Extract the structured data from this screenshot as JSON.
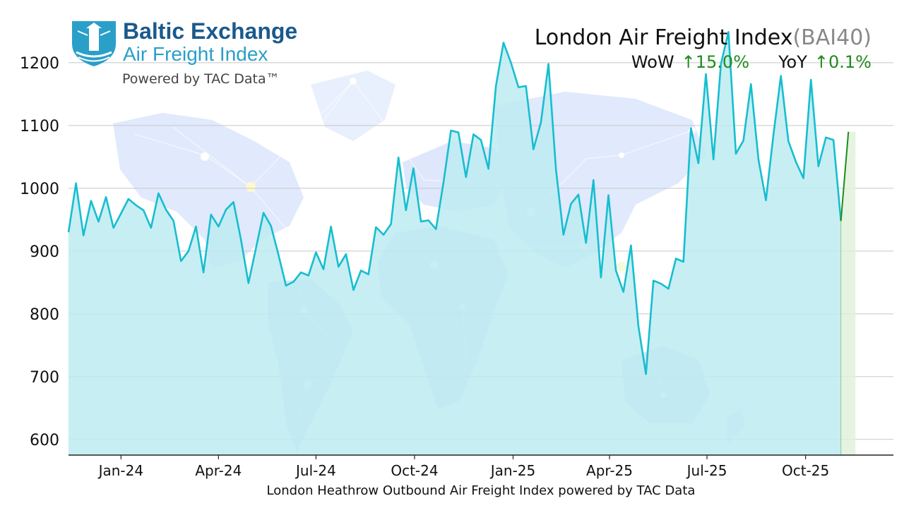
{
  "brand": {
    "line1": "Baltic Exchange",
    "line2": "Air Freight Index",
    "line3": "Powered by TAC Data™",
    "logo_icon": "lighthouse-shield-icon"
  },
  "header": {
    "title": "London Air Freight Index",
    "code": "(BAI40)",
    "wow_label": "WoW",
    "wow_value": "↑15.0%",
    "yoy_label": "YoY",
    "yoy_value": "↑0.1%"
  },
  "background": {
    "icon": "world-map-network-icon"
  },
  "colors": {
    "line": "#16becf",
    "fill": "#bdebf1",
    "latest_segment": "#1e8c1e",
    "latest_fill": "#dff0d8",
    "positive": "#1e8c1e",
    "brand": "#1a5a8c",
    "brand_accent": "#2a9fc8"
  },
  "chart_data": {
    "type": "area",
    "xlabel": "London Heathrow Outbound Air Freight Index powered by TAC Data",
    "ylabel": "",
    "ylim": [
      575,
      1255
    ],
    "xlim": [
      "2023-11-13",
      "2025-12-22"
    ],
    "yticks": [
      600,
      700,
      800,
      900,
      1000,
      1100,
      1200
    ],
    "xticks": [
      {
        "label": "Jan-24",
        "date": "2024-01-01"
      },
      {
        "label": "Apr-24",
        "date": "2024-04-01"
      },
      {
        "label": "Jul-24",
        "date": "2024-07-01"
      },
      {
        "label": "Oct-24",
        "date": "2024-10-01"
      },
      {
        "label": "Jan-25",
        "date": "2025-01-01"
      },
      {
        "label": "Apr-25",
        "date": "2025-04-01"
      },
      {
        "label": "Jul-25",
        "date": "2025-07-01"
      },
      {
        "label": "Oct-25",
        "date": "2025-10-01"
      }
    ],
    "grid": true,
    "series": [
      {
        "values": [
          [
            "2023-11-13",
            930
          ],
          [
            "2023-11-20",
            1008
          ],
          [
            "2023-11-27",
            925
          ],
          [
            "2023-12-04",
            980
          ],
          [
            "2023-12-11",
            947
          ],
          [
            "2023-12-18",
            986
          ],
          [
            "2023-12-25",
            937
          ],
          [
            "2024-01-01",
            960
          ],
          [
            "2024-01-08",
            983
          ],
          [
            "2024-01-15",
            973
          ],
          [
            "2024-01-22",
            965
          ],
          [
            "2024-01-29",
            937
          ],
          [
            "2024-02-05",
            992
          ],
          [
            "2024-02-12",
            966
          ],
          [
            "2024-02-19",
            948
          ],
          [
            "2024-02-26",
            884
          ],
          [
            "2024-03-04",
            900
          ],
          [
            "2024-03-11",
            939
          ],
          [
            "2024-03-18",
            866
          ],
          [
            "2024-03-25",
            958
          ],
          [
            "2024-04-01",
            939
          ],
          [
            "2024-04-08",
            966
          ],
          [
            "2024-04-15",
            978
          ],
          [
            "2024-04-22",
            918
          ],
          [
            "2024-04-29",
            849
          ],
          [
            "2024-05-06",
            905
          ],
          [
            "2024-05-13",
            961
          ],
          [
            "2024-05-20",
            940
          ],
          [
            "2024-05-27",
            894
          ],
          [
            "2024-06-03",
            845
          ],
          [
            "2024-06-10",
            851
          ],
          [
            "2024-06-17",
            866
          ],
          [
            "2024-06-24",
            861
          ],
          [
            "2024-07-01",
            898
          ],
          [
            "2024-07-08",
            871
          ],
          [
            "2024-07-15",
            939
          ],
          [
            "2024-07-22",
            875
          ],
          [
            "2024-07-29",
            895
          ],
          [
            "2024-08-05",
            838
          ],
          [
            "2024-08-12",
            869
          ],
          [
            "2024-08-19",
            863
          ],
          [
            "2024-08-26",
            938
          ],
          [
            "2024-09-02",
            926
          ],
          [
            "2024-09-09",
            943
          ],
          [
            "2024-09-16",
            1049
          ],
          [
            "2024-09-23",
            965
          ],
          [
            "2024-09-30",
            1032
          ],
          [
            "2024-10-07",
            947
          ],
          [
            "2024-10-14",
            949
          ],
          [
            "2024-10-21",
            935
          ],
          [
            "2024-10-28",
            1009
          ],
          [
            "2024-11-04",
            1092
          ],
          [
            "2024-11-11",
            1089
          ],
          [
            "2024-11-18",
            1018
          ],
          [
            "2024-11-25",
            1086
          ],
          [
            "2024-12-02",
            1077
          ],
          [
            "2024-12-09",
            1031
          ],
          [
            "2024-12-16",
            1163
          ],
          [
            "2024-12-23",
            1232
          ],
          [
            "2024-12-30",
            1200
          ],
          [
            "2025-01-06",
            1161
          ],
          [
            "2025-01-13",
            1163
          ],
          [
            "2025-01-20",
            1062
          ],
          [
            "2025-01-27",
            1105
          ],
          [
            "2025-02-03",
            1198
          ],
          [
            "2025-02-10",
            1030
          ],
          [
            "2025-02-17",
            926
          ],
          [
            "2025-02-24",
            975
          ],
          [
            "2025-03-03",
            990
          ],
          [
            "2025-03-10",
            913
          ],
          [
            "2025-03-17",
            1013
          ],
          [
            "2025-03-24",
            858
          ],
          [
            "2025-03-31",
            989
          ],
          [
            "2025-04-07",
            869
          ],
          [
            "2025-04-14",
            835
          ],
          [
            "2025-04-21",
            909
          ],
          [
            "2025-04-28",
            780
          ],
          [
            "2025-05-05",
            704
          ],
          [
            "2025-05-12",
            853
          ],
          [
            "2025-05-19",
            848
          ],
          [
            "2025-05-26",
            840
          ],
          [
            "2025-06-02",
            888
          ],
          [
            "2025-06-09",
            883
          ],
          [
            "2025-06-16",
            1096
          ],
          [
            "2025-06-23",
            1040
          ],
          [
            "2025-06-30",
            1182
          ],
          [
            "2025-07-07",
            1046
          ],
          [
            "2025-07-14",
            1198
          ],
          [
            "2025-07-21",
            1249
          ],
          [
            "2025-07-28",
            1055
          ],
          [
            "2025-08-04",
            1076
          ],
          [
            "2025-08-11",
            1166
          ],
          [
            "2025-08-18",
            1046
          ],
          [
            "2025-08-25",
            981
          ],
          [
            "2025-09-01",
            1085
          ],
          [
            "2025-09-08",
            1179
          ],
          [
            "2025-09-15",
            1075
          ],
          [
            "2025-09-22",
            1042
          ],
          [
            "2025-09-29",
            1016
          ],
          [
            "2025-10-06",
            1173
          ],
          [
            "2025-10-13",
            1035
          ],
          [
            "2025-10-20",
            1081
          ],
          [
            "2025-10-27",
            1077
          ],
          [
            "2025-11-03",
            948
          ],
          [
            "2025-11-10",
            1090
          ]
        ]
      }
    ]
  }
}
